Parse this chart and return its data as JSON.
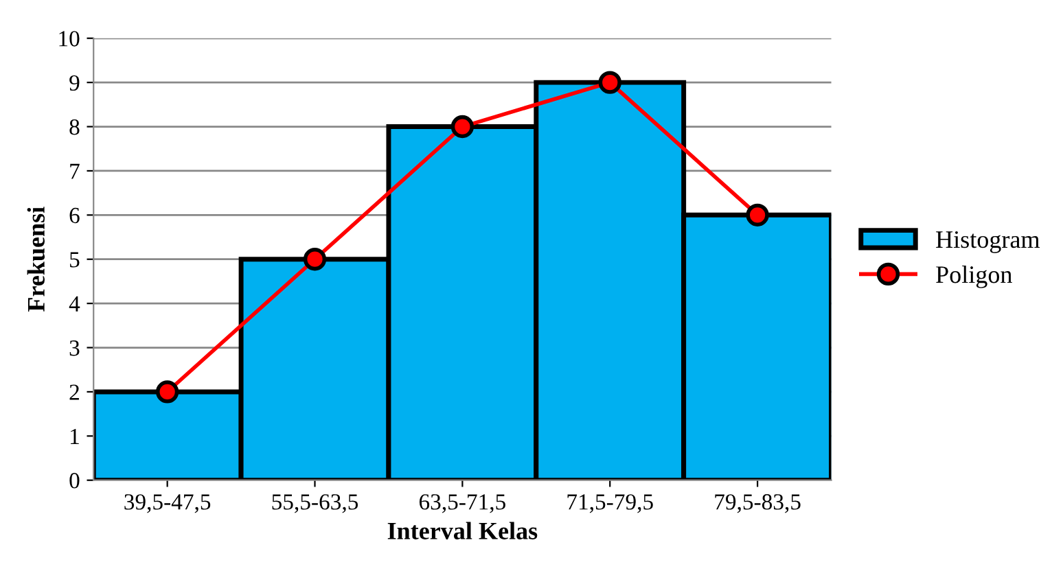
{
  "chart_data": {
    "type": "bar",
    "xlabel": "Interval Kelas",
    "ylabel": "Frekuensi",
    "categories": [
      "39,5-47,5",
      "55,5-63,5",
      "63,5-71,5",
      "71,5-79,5",
      "79,5-83,5"
    ],
    "series": [
      {
        "name": "Histogram",
        "color": "#00b0f0",
        "values": [
          2,
          5,
          8,
          9,
          6
        ]
      },
      {
        "name": "Poligon",
        "type": "line",
        "color": "#ff0000",
        "marker": "circle",
        "values": [
          2,
          5,
          8,
          9,
          6
        ]
      }
    ],
    "ylim": [
      0,
      10
    ],
    "yticks": [
      0,
      1,
      2,
      3,
      4,
      5,
      6,
      7,
      8,
      9,
      10
    ],
    "grid": "y",
    "legend": "right"
  }
}
